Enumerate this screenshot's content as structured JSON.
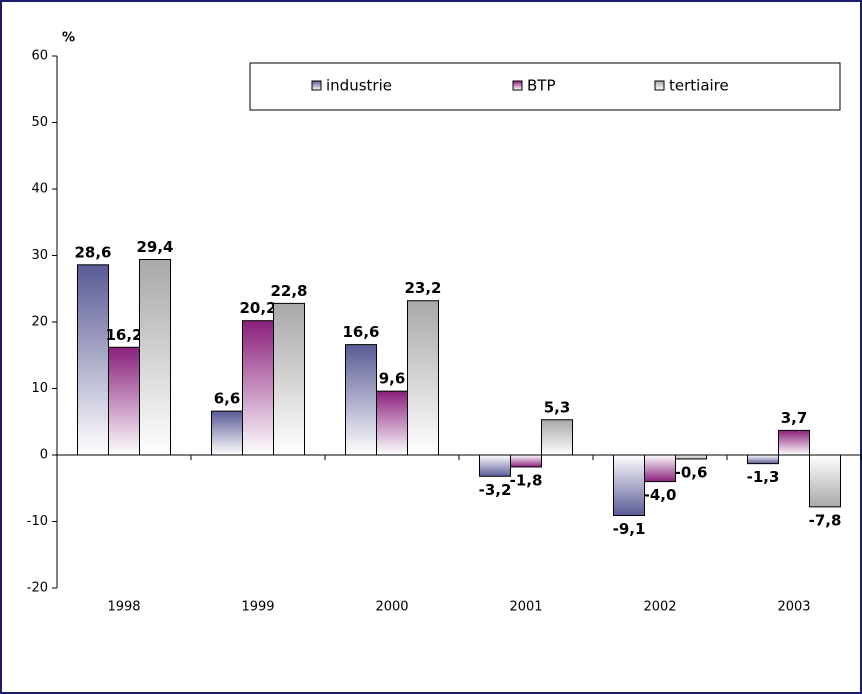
{
  "chart_data": {
    "type": "bar",
    "y_label": "%",
    "categories": [
      "1998",
      "1999",
      "2000",
      "2001",
      "2002",
      "2003"
    ],
    "series": [
      {
        "name": "industrie",
        "color": "#5a5a96",
        "values": [
          28.6,
          6.6,
          16.6,
          -3.2,
          -9.1,
          -1.3
        ],
        "value_labels": [
          "28,6",
          "6,6",
          "16,6",
          "-3,2",
          "-9,1",
          "-1,3"
        ]
      },
      {
        "name": "BTP",
        "color": "#8a1f7c",
        "values": [
          16.2,
          20.2,
          9.6,
          -1.8,
          -4.0,
          3.7
        ],
        "value_labels": [
          "16,2",
          "20,2",
          "9,6",
          "-1,8",
          "-4,0",
          "3,7"
        ]
      },
      {
        "name": "tertiaire",
        "color": "#a8a8a8",
        "values": [
          29.4,
          22.8,
          23.2,
          5.3,
          -0.6,
          -7.8
        ],
        "value_labels": [
          "29,4",
          "22,8",
          "23,2",
          "5,3",
          "-0,6",
          "-7,8"
        ]
      }
    ],
    "ylim": [
      -20,
      60
    ],
    "yticks": [
      -20,
      -10,
      0,
      10,
      20,
      30,
      40,
      50,
      60
    ]
  }
}
